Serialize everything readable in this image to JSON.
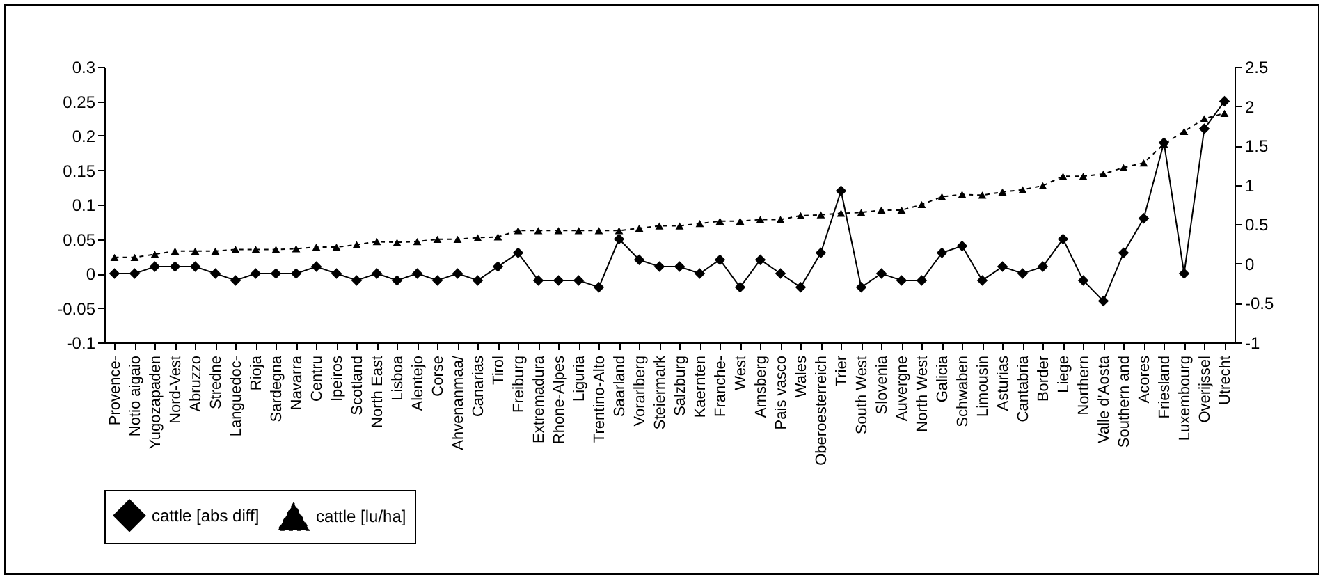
{
  "chart_data": {
    "type": "line",
    "categories": [
      "Provence-",
      "Notio aigaio",
      "Yugozapaden",
      "Nord-Vest",
      "Abruzzo",
      "Stredne",
      "Languedoc-",
      "Rioja",
      "Sardegna",
      "Navarra",
      "Centru",
      "Ipeiros",
      "Scotland",
      "North East",
      "Lisboa",
      "Alentejo",
      "Corse",
      "Ahvenanmaa/",
      "Canarias",
      "Tirol",
      "Freiburg",
      "Extremadura",
      "Rhone-Alpes",
      "Liguria",
      "Trentino-Alto",
      "Saarland",
      "Vorarlberg",
      "Steiermark",
      "Salzburg",
      "Kaernten",
      "Franche-",
      "West",
      "Arnsberg",
      "Pais vasco",
      "Wales",
      "Oberoesterreich",
      "Trier",
      "South West",
      "Slovenia",
      "Auvergne",
      "North West",
      "Galicia",
      "Schwaben",
      "Limousin",
      "Asturias",
      "Cantabria",
      "Border",
      "Liege",
      "Northern",
      "Valle d'Aosta",
      "Southern and",
      "Acores",
      "Friesland",
      "Luxembourg",
      "Overijssel",
      "Utrecht"
    ],
    "series": [
      {
        "name": "cattle [abs diff]",
        "color": "#000000",
        "marker": "diamond",
        "line_style": "solid",
        "values": [
          0,
          0,
          0.01,
          0.01,
          0.01,
          0,
          -0.01,
          0,
          0,
          0,
          0.01,
          0,
          -0.01,
          0,
          -0.01,
          0,
          -0.01,
          0,
          -0.01,
          0.01,
          0.03,
          -0.01,
          -0.01,
          -0.01,
          -0.02,
          0.05,
          0.02,
          0.01,
          0.01,
          0,
          0.02,
          -0.02,
          0.02,
          0,
          -0.02,
          0.03,
          0.12,
          -0.02,
          0,
          -0.01,
          -0.01,
          0.03,
          0.04,
          -0.01,
          0.01,
          0,
          0.01,
          0.05,
          -0.01,
          -0.04,
          0.03,
          0.08,
          0.19,
          0,
          0.21,
          0.25
        ]
      },
      {
        "name": "cattle [lu/ha]",
        "color": "#000000",
        "marker": "triangle",
        "line_style": "dashed",
        "axis": "y2",
        "values": [
          0.08,
          0.08,
          0.12,
          0.16,
          0.16,
          0.16,
          0.18,
          0.18,
          0.18,
          0.19,
          0.21,
          0.21,
          0.24,
          0.28,
          0.27,
          0.28,
          0.31,
          0.31,
          0.33,
          0.34,
          0.42,
          0.42,
          0.42,
          0.42,
          0.42,
          0.42,
          0.45,
          0.48,
          0.48,
          0.51,
          0.54,
          0.54,
          0.56,
          0.56,
          0.61,
          0.62,
          0.64,
          0.65,
          0.68,
          0.68,
          0.75,
          0.85,
          0.88,
          0.87,
          0.91,
          0.94,
          0.99,
          1.11,
          1.11,
          1.14,
          1.22,
          1.28,
          1.52,
          1.68,
          1.84,
          1.91
        ]
      }
    ],
    "ylim": [
      -0.1,
      0.3
    ],
    "yticks": [
      -0.1,
      -0.05,
      0,
      0.05,
      0.1,
      0.15,
      0.2,
      0.25,
      0.3
    ],
    "y2lim": [
      -1,
      2.5
    ],
    "y2ticks": [
      -1,
      -0.5,
      0,
      0.5,
      1,
      1.5,
      2,
      2.5
    ],
    "legend": "bottom"
  }
}
